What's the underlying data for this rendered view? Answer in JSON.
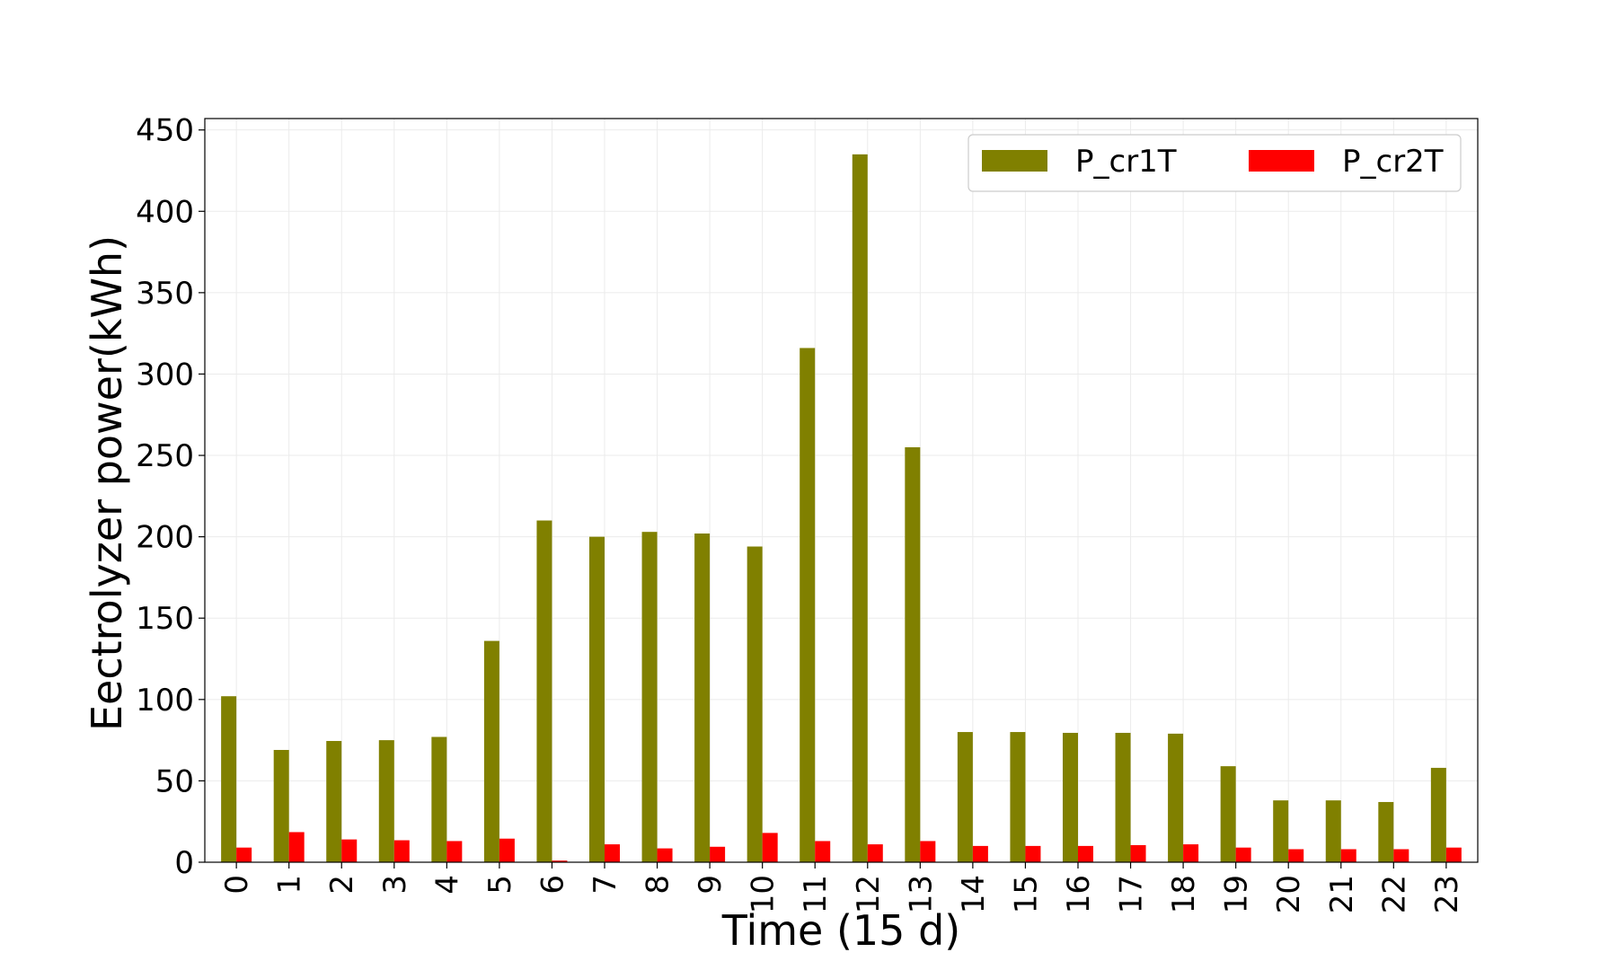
{
  "chart_data": {
    "type": "bar",
    "title": "",
    "xlabel": "Time (15 d)",
    "ylabel": "Eectrolyzer power(kWh)",
    "ylim": [
      0,
      457
    ],
    "yticks": [
      0,
      50,
      100,
      150,
      200,
      250,
      300,
      350,
      400,
      450
    ],
    "grid": true,
    "legend_position": "top-right",
    "categories": [
      "0",
      "1",
      "2",
      "3",
      "4",
      "5",
      "6",
      "7",
      "8",
      "9",
      "10",
      "11",
      "12",
      "13",
      "14",
      "15",
      "16",
      "17",
      "18",
      "19",
      "20",
      "21",
      "22",
      "23"
    ],
    "series": [
      {
        "name": "P_cr1T",
        "color": "#808000",
        "values": [
          102,
          69,
          74.5,
          75,
          77,
          136,
          210,
          200,
          203,
          202,
          194,
          316,
          435,
          255,
          80,
          80,
          79.5,
          79.5,
          79,
          59,
          38,
          38,
          37,
          58
        ]
      },
      {
        "name": "P_cr2T",
        "color": "#ff0000",
        "values": [
          9,
          18.5,
          14,
          13.5,
          13,
          14.5,
          1,
          11,
          8.5,
          9.5,
          18,
          13,
          11,
          13,
          10,
          10,
          10,
          10.5,
          11,
          9,
          8,
          8,
          8,
          9
        ]
      }
    ]
  }
}
